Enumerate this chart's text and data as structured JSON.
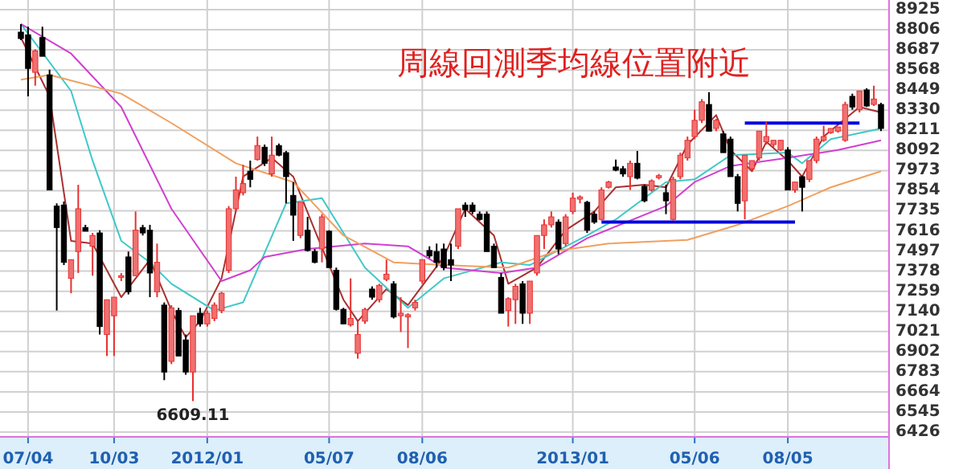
{
  "chart_data": {
    "type": "candlestick",
    "title": "周線回測季均線位置附近",
    "categories": [
      null,
      "07/04",
      null,
      null,
      null,
      null,
      null,
      null,
      null,
      null,
      null,
      null,
      null,
      "10/03",
      null,
      null,
      null,
      null,
      null,
      null,
      null,
      null,
      null,
      null,
      null,
      null,
      "2012/01",
      null,
      null,
      null,
      null,
      null,
      null,
      null,
      null,
      null,
      null,
      null,
      null,
      null,
      null,
      null,
      null,
      "05/07",
      null,
      null,
      null,
      null,
      null,
      null,
      null,
      null,
      null,
      null,
      null,
      null,
      "08/06",
      null,
      null,
      null,
      null,
      null,
      null,
      null,
      null,
      null,
      null,
      null,
      null,
      null,
      null,
      null,
      null,
      null,
      null,
      null,
      null,
      "2013/01",
      null,
      null,
      null,
      null,
      null,
      null,
      null,
      null,
      null,
      null,
      null,
      null,
      null,
      null,
      null,
      null,
      "05/06",
      null,
      null,
      null,
      null,
      null,
      null,
      null,
      null,
      null,
      null,
      null,
      null,
      "08/05",
      null,
      null,
      null,
      null,
      null,
      null,
      null,
      null,
      null,
      null,
      null,
      null,
      null
    ],
    "ohlc": [
      [
        8792,
        8839,
        8744,
        8754
      ],
      [
        8776,
        8824,
        8412,
        8577
      ],
      [
        8554,
        8690,
        8475,
        8681
      ],
      [
        8760,
        8824,
        8649,
        8649
      ],
      [
        8539,
        8570,
        7858,
        7858
      ],
      [
        7763,
        7779,
        7145,
        7636
      ],
      [
        7769,
        7790,
        7414,
        7430
      ],
      [
        7335,
        7446,
        7247,
        7446
      ],
      [
        7494,
        7889,
        7367,
        7747
      ],
      [
        7636,
        7652,
        7614,
        7614
      ],
      [
        7525,
        7604,
        7351,
        7589
      ],
      [
        7604,
        7620,
        7003,
        7050
      ],
      [
        7003,
        7209,
        6876,
        7209
      ],
      [
        7114,
        7224,
        6876,
        7224
      ],
      [
        7341,
        7367,
        7319,
        7351
      ],
      [
        7462,
        7494,
        7240,
        7256
      ],
      [
        7351,
        7731,
        7351,
        7620
      ],
      [
        7636,
        7652,
        7589,
        7604
      ],
      [
        7620,
        7652,
        7224,
        7367
      ],
      [
        7256,
        7541,
        7224,
        7430
      ],
      [
        7177,
        7193,
        6733,
        6781
      ],
      [
        6844,
        7177,
        6828,
        7161
      ],
      [
        7145,
        7161,
        6876,
        6876
      ],
      [
        6971,
        7003,
        6765,
        6781
      ],
      [
        6781,
        7114,
        6609.11,
        7114
      ],
      [
        7129,
        7161,
        7050,
        7066
      ],
      [
        7066,
        7145,
        7050,
        7129
      ],
      [
        7098,
        7193,
        7082,
        7177
      ],
      [
        7145,
        7256,
        7129,
        7247
      ],
      [
        7383,
        7763,
        7367,
        7747
      ],
      [
        7747,
        7937,
        7731,
        7858
      ],
      [
        7842,
        8007,
        7826,
        7896
      ],
      [
        7969,
        8032,
        7874,
        7921
      ],
      [
        8038,
        8174,
        8032,
        8121
      ],
      [
        8111,
        8127,
        8000,
        8016
      ],
      [
        7953,
        8174,
        7937,
        8064
      ],
      [
        8121,
        8133,
        8058,
        8064
      ],
      [
        8079,
        8089,
        7779,
        7937
      ],
      [
        7826,
        7905,
        7557,
        7709
      ],
      [
        7589,
        7785,
        7573,
        7785
      ],
      [
        7620,
        7699,
        7494,
        7500
      ],
      [
        7494,
        7509,
        7424,
        7430
      ],
      [
        7509,
        7715,
        7430,
        7699
      ],
      [
        7614,
        7620,
        7399,
        7399
      ],
      [
        7383,
        7399,
        7145,
        7152
      ],
      [
        7152,
        7161,
        7066,
        7066
      ],
      [
        7060,
        7335,
        7050,
        7098
      ],
      [
        6892,
        7082,
        6860,
        7003
      ],
      [
        7082,
        7161,
        7066,
        7152
      ],
      [
        7272,
        7288,
        7209,
        7224
      ],
      [
        7209,
        7303,
        7193,
        7294
      ],
      [
        7329,
        7446,
        7319,
        7360
      ],
      [
        7303,
        7319,
        7098,
        7107
      ],
      [
        7114,
        7224,
        7018,
        7129
      ],
      [
        7107,
        7129,
        6923,
        7120
      ],
      [
        7161,
        7209,
        7145,
        7193
      ],
      [
        7319,
        7446,
        7303,
        7446
      ],
      [
        7500,
        7525,
        7455,
        7468
      ],
      [
        7494,
        7541,
        7399,
        7430
      ],
      [
        7509,
        7541,
        7383,
        7399
      ],
      [
        7446,
        7541,
        7319,
        7414
      ],
      [
        7525,
        7747,
        7509,
        7747
      ],
      [
        7769,
        7785,
        7699,
        7741
      ],
      [
        7769,
        7785,
        7715,
        7731
      ],
      [
        7715,
        7731,
        7677,
        7684
      ],
      [
        7715,
        7731,
        7494,
        7494
      ],
      [
        7525,
        7541,
        7399,
        7399
      ],
      [
        7341,
        7367,
        7129,
        7129
      ],
      [
        7145,
        7224,
        7050,
        7215
      ],
      [
        7209,
        7303,
        7066,
        7288
      ],
      [
        7303,
        7319,
        7066,
        7129
      ],
      [
        7129,
        7319,
        7066,
        7319
      ],
      [
        7367,
        7589,
        7351,
        7589
      ],
      [
        7589,
        7684,
        7509,
        7652
      ],
      [
        7652,
        7731,
        7636,
        7699
      ],
      [
        7668,
        7684,
        7478,
        7509
      ],
      [
        7541,
        7715,
        7525,
        7699
      ],
      [
        7731,
        7842,
        7715,
        7810
      ],
      [
        7804,
        7826,
        7779,
        7817
      ],
      [
        7785,
        7794,
        7604,
        7620
      ],
      [
        7715,
        7731,
        7658,
        7668
      ],
      [
        7684,
        7874,
        7677,
        7858
      ],
      [
        7874,
        7912,
        7867,
        7905
      ],
      [
        7994,
        8038,
        7969,
        7975
      ],
      [
        7984,
        8000,
        7937,
        7953
      ],
      [
        7937,
        8032,
        7858,
        8016
      ],
      [
        8016,
        8089,
        7921,
        7928
      ],
      [
        7880,
        7889,
        7785,
        7794
      ],
      [
        7858,
        7921,
        7848,
        7912
      ],
      [
        7931,
        7953,
        7921,
        7943
      ],
      [
        7842,
        7889,
        7715,
        7794
      ],
      [
        7684,
        7937,
        7677,
        7921
      ],
      [
        7937,
        8079,
        7921,
        8064
      ],
      [
        8048,
        8174,
        8032,
        8152
      ],
      [
        8174,
        8333,
        8159,
        8270
      ],
      [
        8270,
        8396,
        8254,
        8380
      ],
      [
        8364,
        8437,
        8206,
        8206
      ],
      [
        8222,
        8279,
        8206,
        8270
      ],
      [
        8190,
        8206,
        8079,
        8079
      ],
      [
        8159,
        8174,
        7937,
        7937
      ],
      [
        7937,
        7953,
        7731,
        7779
      ],
      [
        7794,
        8064,
        7684,
        8064
      ],
      [
        7984,
        8032,
        7969,
        8032
      ],
      [
        8048,
        8206,
        8032,
        8206
      ],
      [
        8143,
        8260,
        8127,
        8174
      ],
      [
        8127,
        8152,
        8111,
        8152
      ],
      [
        8095,
        8152,
        8089,
        8152
      ],
      [
        8095,
        8111,
        7858,
        7858
      ],
      [
        7858,
        7905,
        7842,
        7905
      ],
      [
        7937,
        7943,
        7731,
        7874
      ],
      [
        7921,
        8032,
        7905,
        8032
      ],
      [
        8032,
        8174,
        8016,
        8159
      ],
      [
        8152,
        8238,
        8143,
        8174
      ],
      [
        8197,
        8222,
        8190,
        8222
      ],
      [
        8206,
        8231,
        8197,
        8231
      ],
      [
        8152,
        8380,
        8143,
        8364
      ],
      [
        8412,
        8428,
        8333,
        8349
      ],
      [
        8333,
        8444,
        8317,
        8444
      ],
      [
        8450,
        8460,
        8349,
        8355
      ],
      [
        8364,
        8475,
        8355,
        8396
      ],
      [
        8364,
        8374,
        8206,
        8222
      ]
    ],
    "series": [
      {
        "type": "line",
        "color": "#a83030",
        "values": [
          8760,
          null,
          null,
          null,
          8412,
          null,
          null,
          7557,
          null,
          null,
          7541,
          null,
          null,
          null,
          7224,
          null,
          null,
          null,
          7446,
          null,
          null,
          7145,
          null,
          6987,
          null,
          7082,
          null,
          null,
          7335,
          null,
          null,
          7937,
          null,
          null,
          null,
          8048,
          null,
          null,
          7937,
          null,
          null,
          7620,
          null,
          null,
          null,
          7209,
          null,
          7082,
          null,
          null,
          null,
          7272,
          null,
          null,
          7177,
          null,
          null,
          null,
          null,
          7462,
          null,
          null,
          7747,
          null,
          null,
          null,
          7589,
          null,
          7303,
          null,
          null,
          null,
          7399,
          null,
          null,
          null,
          7620,
          null,
          null,
          null,
          7731,
          null,
          null,
          7874,
          null,
          null,
          null,
          7889,
          null,
          null,
          7874,
          null,
          null,
          8127,
          null,
          null,
          null,
          8301,
          null,
          8095,
          null,
          null,
          7969,
          null,
          8143,
          null,
          null,
          8032,
          null,
          7937,
          null,
          null,
          8174,
          null,
          null,
          null,
          null,
          8349,
          null,
          null,
          8317
        ]
      },
      {
        "type": "line",
        "color": "#40c8c8",
        "values": [
          8840,
          null,
          null,
          null,
          null,
          null,
          null,
          8444,
          null,
          null,
          8032,
          null,
          null,
          null,
          7557,
          null,
          null,
          null,
          7430,
          null,
          null,
          7303,
          null,
          null,
          null,
          null,
          null,
          7145,
          null,
          null,
          null,
          7193,
          null,
          null,
          null,
          null,
          null,
          7779,
          null,
          null,
          null,
          null,
          7810,
          null,
          null,
          null,
          null,
          null,
          7399,
          null,
          null,
          null,
          null,
          null,
          7161,
          null,
          null,
          null,
          null,
          7335,
          null,
          null,
          null,
          null,
          null,
          null,
          null,
          7430,
          null,
          null,
          null,
          7414,
          null,
          null,
          null,
          null,
          null,
          null,
          null,
          7589,
          null,
          null,
          null,
          7684,
          null,
          null,
          null,
          null,
          null,
          null,
          7905,
          null,
          null,
          null,
          7921,
          null,
          null,
          null,
          null,
          8064,
          null,
          null,
          null,
          null,
          null,
          null,
          null,
          8079,
          null,
          8016,
          null,
          null,
          null,
          8159,
          null,
          null,
          null,
          null,
          null,
          null,
          8222
        ]
      },
      {
        "type": "line",
        "color": "#d040d0",
        "values": [
          8840,
          null,
          null,
          null,
          null,
          null,
          null,
          8665,
          null,
          null,
          null,
          null,
          null,
          null,
          8349,
          null,
          null,
          null,
          null,
          null,
          null,
          7747,
          null,
          null,
          null,
          null,
          null,
          null,
          7319,
          null,
          null,
          null,
          7383,
          null,
          7462,
          null,
          null,
          null,
          null,
          null,
          7509,
          null,
          null,
          null,
          null,
          null,
          null,
          null,
          7541,
          null,
          null,
          null,
          null,
          null,
          7525,
          null,
          null,
          null,
          null,
          7399,
          null,
          null,
          null,
          null,
          null,
          null,
          null,
          7367,
          null,
          null,
          null,
          null,
          7399,
          null,
          null,
          null,
          null,
          null,
          null,
          7573,
          null,
          null,
          null,
          null,
          null,
          null,
          null,
          null,
          null,
          null,
          7763,
          null,
          null,
          null,
          7905,
          null,
          null,
          null,
          null,
          8000,
          null,
          null,
          null,
          null,
          null,
          null,
          null,
          8048,
          null,
          null,
          null,
          null,
          null,
          null,
          8095,
          null,
          null,
          null,
          null,
          null,
          8152
        ]
      },
      {
        "type": "line",
        "color": "#f0a060",
        "values": [
          8510,
          null,
          null,
          null,
          8539,
          null,
          null,
          null,
          null,
          null,
          null,
          null,
          null,
          null,
          8428,
          null,
          null,
          null,
          null,
          null,
          null,
          8254,
          null,
          null,
          null,
          null,
          null,
          null,
          null,
          null,
          8016,
          null,
          null,
          null,
          null,
          null,
          null,
          null,
          7905,
          null,
          null,
          null,
          null,
          null,
          null,
          7589,
          null,
          null,
          null,
          null,
          null,
          null,
          7430,
          null,
          null,
          null,
          null,
          null,
          null,
          7414,
          null,
          null,
          null,
          null,
          null,
          null,
          null,
          null,
          7399,
          null,
          null,
          null,
          null,
          null,
          null,
          7500,
          null,
          null,
          null,
          null,
          null,
          null,
          7541,
          null,
          null,
          null,
          null,
          null,
          null,
          null,
          null,
          null,
          null,
          7563,
          null,
          null,
          null,
          null,
          null,
          null,
          7652,
          null,
          null,
          null,
          null,
          null,
          null,
          7763,
          null,
          null,
          null,
          null,
          null,
          7874,
          null,
          null,
          null,
          null,
          null,
          null,
          7969
        ]
      },
      {
        "type": "line",
        "color": "#0000e0",
        "values": [
          null,
          null,
          null,
          null,
          null,
          null,
          null,
          null,
          null,
          null,
          null,
          null,
          null,
          null,
          null,
          null,
          null,
          null,
          null,
          null,
          null,
          null,
          null,
          null,
          null,
          null,
          null,
          null,
          null,
          null,
          null,
          null,
          null,
          null,
          null,
          null,
          null,
          null,
          null,
          null,
          null,
          null,
          null,
          null,
          null,
          null,
          null,
          null,
          null,
          null,
          null,
          null,
          null,
          null,
          null,
          null,
          null,
          null,
          null,
          null,
          null,
          null,
          null,
          null,
          null,
          null,
          null,
          null,
          null,
          null,
          null,
          null,
          null,
          null,
          null,
          null,
          null,
          null,
          null,
          null,
          null,
          7668,
          null,
          null,
          null,
          null,
          null,
          null,
          null,
          null,
          null,
          null,
          null,
          null,
          null,
          null,
          null,
          null,
          null,
          null,
          null,
          null,
          null,
          null,
          null,
          null,
          null,
          null,
          7668,
          null,
          null,
          null,
          null,
          null,
          null,
          null,
          null,
          null,
          null,
          null,
          null
        ]
      },
      {
        "type": "line",
        "color": "#0000e0",
        "values": [
          null,
          null,
          null,
          null,
          null,
          null,
          null,
          null,
          null,
          null,
          null,
          null,
          null,
          null,
          null,
          null,
          null,
          null,
          null,
          null,
          null,
          null,
          null,
          null,
          null,
          null,
          null,
          null,
          null,
          null,
          null,
          null,
          null,
          null,
          null,
          null,
          null,
          null,
          null,
          null,
          null,
          null,
          null,
          null,
          null,
          null,
          null,
          null,
          null,
          null,
          null,
          null,
          null,
          null,
          null,
          null,
          null,
          null,
          null,
          null,
          null,
          null,
          null,
          null,
          null,
          null,
          null,
          null,
          null,
          null,
          null,
          null,
          null,
          null,
          null,
          null,
          null,
          null,
          null,
          null,
          null,
          null,
          null,
          null,
          null,
          null,
          null,
          null,
          null,
          null,
          null,
          null,
          null,
          null,
          null,
          null,
          null,
          null,
          null,
          null,
          null,
          8254,
          null,
          null,
          null,
          null,
          null,
          null,
          null,
          null,
          null,
          null,
          null,
          null,
          null,
          null,
          null,
          8254,
          null,
          null,
          null
        ]
      }
    ],
    "annotations": [
      {
        "text": "6609.11",
        "y": 6609.11
      }
    ],
    "ylim": [
      6426,
      8925
    ],
    "yticks": [
      6426,
      6545,
      6664,
      6783,
      6902,
      7021,
      7140,
      7259,
      7378,
      7497,
      7616,
      7735,
      7854,
      7973,
      8092,
      8211,
      8330,
      8449,
      8568,
      8687,
      8806,
      8925
    ],
    "grid": true
  }
}
